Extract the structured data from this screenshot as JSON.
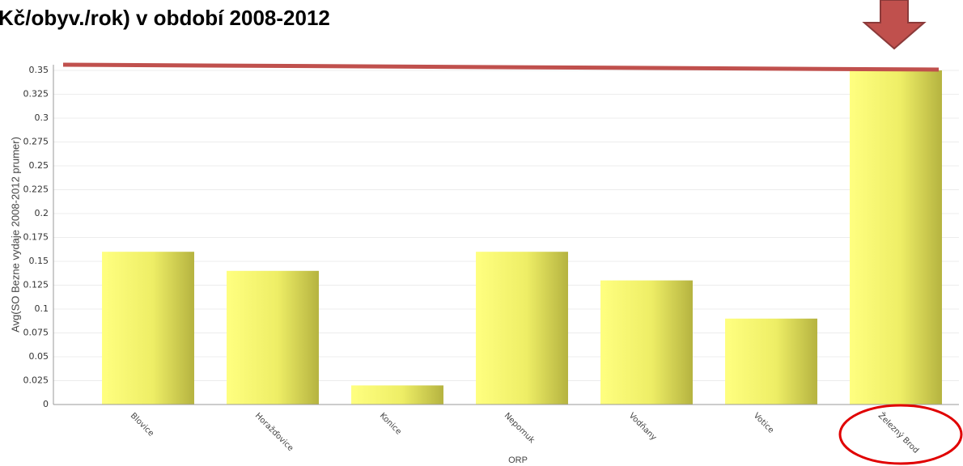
{
  "chart_data": {
    "type": "bar",
    "title": "Kč/obyv./rok) v období 2008-2012",
    "x_label": "ORP",
    "y_label": "Avg(SO Bezne vydaje 2008-2012 prumer)",
    "categories": [
      "Blovice",
      "Horažďovice",
      "Konice",
      "Nepomuk",
      "Vodňany",
      "Votice",
      "Železný Brod"
    ],
    "values": [
      0.16,
      0.14,
      0.02,
      0.16,
      0.13,
      0.09,
      0.35
    ],
    "color": "#ffff80",
    "ylim": [
      0,
      0.35
    ],
    "yticks": [
      0,
      0.025,
      0.05,
      0.075,
      0.1,
      0.125,
      0.15,
      0.175,
      0.2,
      0.225,
      0.25,
      0.275,
      0.3,
      0.325,
      0.35
    ],
    "grid": true
  }
}
